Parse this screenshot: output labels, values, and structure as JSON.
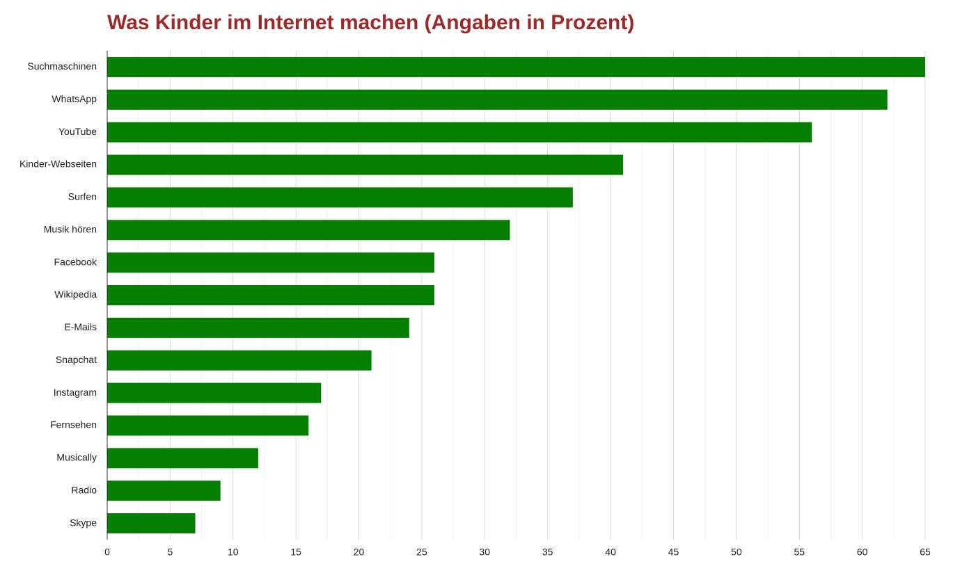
{
  "chart_data": {
    "type": "bar",
    "orientation": "horizontal",
    "title": "Was Kinder im Internet machen (Angaben in Prozent)",
    "categories": [
      "Suchmaschinen",
      "WhatsApp",
      "YouTube",
      "Kinder-Webseiten",
      "Surfen",
      "Musik hören",
      "Facebook",
      "Wikipedia",
      "E-Mails",
      "Snapchat",
      "Instagram",
      "Fernsehen",
      "Musically",
      "Radio",
      "Skype"
    ],
    "values": [
      65,
      62,
      56,
      41,
      37,
      32,
      26,
      26,
      24,
      21,
      17,
      16,
      12,
      9,
      7
    ],
    "color": "#047f00",
    "xlim": [
      0,
      65
    ],
    "xticks": [
      0,
      5,
      10,
      15,
      20,
      25,
      30,
      35,
      40,
      45,
      50,
      55,
      60,
      65
    ],
    "grid": true
  }
}
